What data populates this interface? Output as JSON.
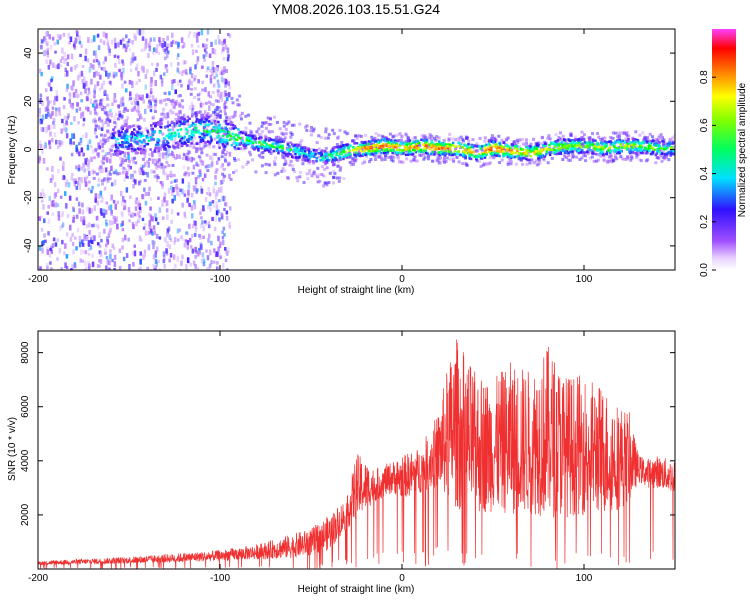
{
  "title": "YM08.2026.103.15.51.G24",
  "chart_data": [
    {
      "type": "heatmap",
      "name": "spectrogram",
      "xlabel": "Height of straight line (km)",
      "ylabel": "Frequency (Hz)",
      "xlim": [
        -200,
        150
      ],
      "ylim": [
        -50,
        50
      ],
      "xticks": [
        -200,
        -100,
        0,
        100
      ],
      "yticks": [
        -40,
        -20,
        0,
        20,
        40
      ],
      "colorbar": {
        "label": "Normalized spectral amplitude",
        "range": [
          0.0,
          1.0
        ],
        "ticks": [
          0.0,
          0.2,
          0.4,
          0.6,
          0.8
        ],
        "colors": [
          "#f4e8ff",
          "#a050ff",
          "#3010ff",
          "#00ffff",
          "#00ff00",
          "#ffff00",
          "#ff8000",
          "#ff0000",
          "#ff40ff"
        ]
      },
      "ridge": {
        "x": [
          -160,
          -140,
          -120,
          -110,
          -100,
          -90,
          -80,
          -70,
          -60,
          -50,
          -45,
          -40,
          -30,
          -20,
          -10,
          0,
          10,
          20,
          30,
          40,
          50,
          60,
          70,
          80,
          90,
          100,
          110,
          120,
          130,
          140,
          150
        ],
        "frequency": [
          4,
          5,
          8,
          9,
          7,
          5,
          3,
          2,
          0,
          -2,
          -3,
          -2,
          0,
          1,
          2,
          1,
          2,
          1,
          1,
          -1,
          1,
          0,
          -1,
          1,
          2,
          2,
          1,
          2,
          2,
          1,
          1
        ],
        "amplitude": [
          0.35,
          0.4,
          0.45,
          0.45,
          0.5,
          0.5,
          0.5,
          0.5,
          0.45,
          0.4,
          0.45,
          0.5,
          0.6,
          0.8,
          0.8,
          0.7,
          0.8,
          0.75,
          0.8,
          0.7,
          0.85,
          0.75,
          0.7,
          0.65,
          0.6,
          0.55,
          0.6,
          0.6,
          0.6,
          0.55,
          0.5
        ]
      }
    },
    {
      "type": "line",
      "name": "snr",
      "xlabel": "Height of straight line (km)",
      "ylabel": "SNR (10 * v/v)",
      "xlim": [
        -200,
        150
      ],
      "ylim": [
        0,
        8800
      ],
      "xticks": [
        -200,
        -100,
        0,
        100
      ],
      "yticks": [
        2000,
        4000,
        6000,
        8000
      ],
      "color": "#f03030",
      "envelope": {
        "x": [
          -200,
          -150,
          -120,
          -100,
          -80,
          -60,
          -50,
          -40,
          -30,
          -25,
          -15,
          -5,
          0,
          10,
          20,
          25,
          30,
          40,
          50,
          60,
          70,
          80,
          90,
          100,
          110,
          120,
          125,
          130,
          135,
          140,
          150
        ],
        "low": [
          150,
          200,
          250,
          300,
          350,
          400,
          500,
          700,
          1500,
          1800,
          2500,
          2800,
          2600,
          2800,
          3000,
          2500,
          2200,
          2000,
          2100,
          2000,
          2000,
          1900,
          1900,
          2000,
          2000,
          2200,
          2500,
          3200,
          3000,
          3000,
          2800
        ],
        "high": [
          300,
          450,
          600,
          700,
          900,
          1300,
          1500,
          2000,
          2700,
          4300,
          3700,
          4000,
          4200,
          4500,
          5800,
          7500,
          8600,
          7300,
          7000,
          7700,
          7400,
          8300,
          7200,
          7200,
          6800,
          6100,
          5800,
          4200,
          4100,
          4200,
          4000
        ]
      }
    }
  ]
}
